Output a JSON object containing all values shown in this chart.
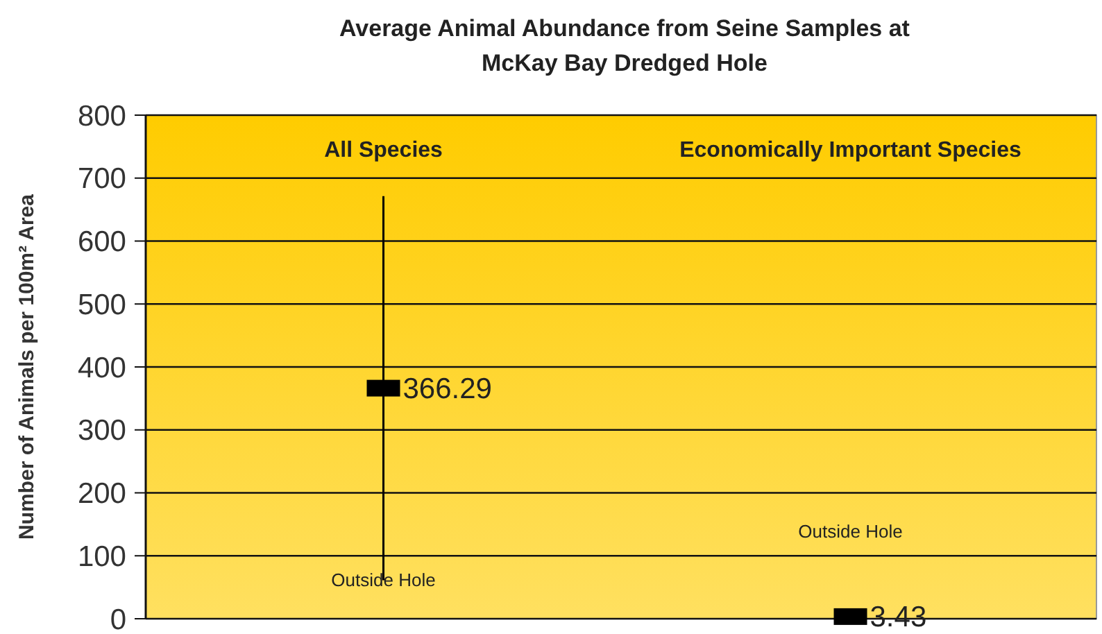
{
  "chart_data": {
    "type": "scatter",
    "title": "Average Animal Abundance from Seine Samples at\nMcKay Bay Dredged Hole",
    "ylabel": "Number of Animals per 100m² Area",
    "categories": [
      "All Species",
      "Economically Important Species"
    ],
    "series": [
      {
        "color": "#000000",
        "values": [
          366.29,
          3.43
        ],
        "errors": [
          305,
          null
        ]
      }
    ],
    "annotations": [
      "Outside Hole",
      "Outside Hole"
    ],
    "ylim": [
      0,
      800
    ],
    "yticks": [
      0,
      100,
      200,
      300,
      400,
      500,
      600,
      700,
      800
    ],
    "grid": "y",
    "marker": "square",
    "data_labels": true
  }
}
